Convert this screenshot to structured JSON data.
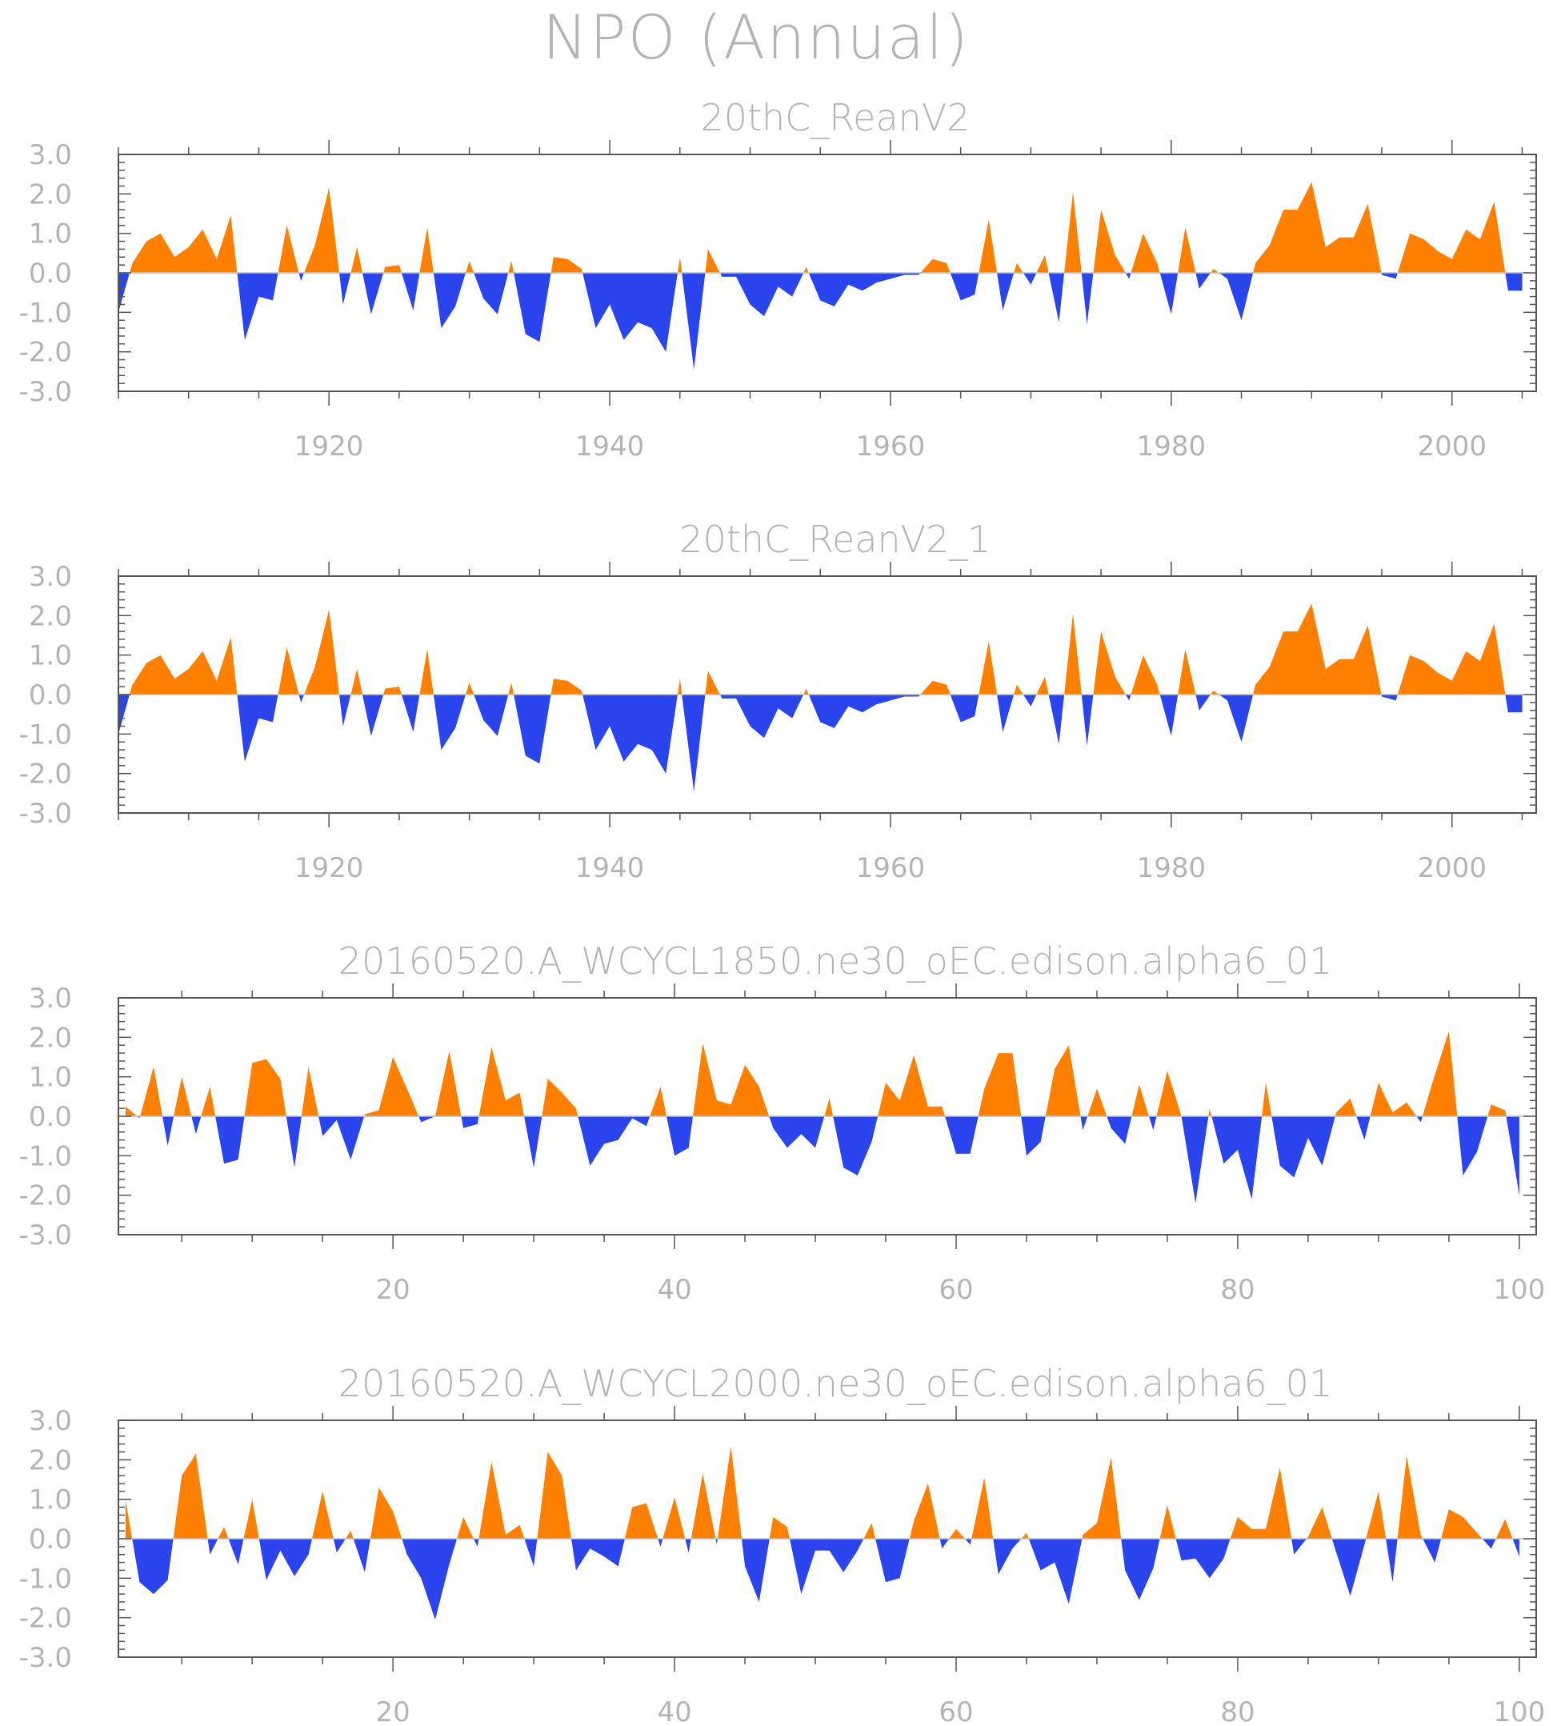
{
  "figure": {
    "title": "NPO (Annual)"
  },
  "colors": {
    "positive": "#ff8000",
    "negative": "#2a45ee",
    "axis": "#555555",
    "text": "#b4b4b4"
  },
  "chart_data": [
    {
      "type": "area",
      "title": "20thC_ReanV2",
      "xlabel": "",
      "ylabel": "",
      "xlim": [
        1905,
        2006
      ],
      "ylim": [
        -3,
        3
      ],
      "xticks": [
        1920,
        1940,
        1960,
        1980,
        2000
      ],
      "yticks": [
        "3.0",
        "2.0",
        "1.0",
        "0.0",
        "-1.0",
        "-2.0",
        "-3.0"
      ],
      "x_start": 1905,
      "values": [
        -1.0,
        0.25,
        0.8,
        1.0,
        0.4,
        0.65,
        1.1,
        0.35,
        1.45,
        -1.7,
        -0.6,
        -0.7,
        1.2,
        -0.2,
        0.7,
        2.15,
        -0.8,
        0.65,
        -1.05,
        0.15,
        0.2,
        -0.95,
        1.15,
        -1.4,
        -0.85,
        0.3,
        -0.65,
        -1.05,
        0.3,
        -1.55,
        -1.75,
        0.4,
        0.35,
        0.1,
        -1.4,
        -0.8,
        -1.7,
        -1.25,
        -1.4,
        -2.0,
        0.4,
        -2.45,
        0.6,
        -0.1,
        -0.1,
        -0.8,
        -1.1,
        -0.35,
        -0.6,
        0.15,
        -0.7,
        -0.85,
        -0.3,
        -0.45,
        -0.25,
        -0.15,
        -0.05,
        -0.05,
        0.35,
        0.25,
        -0.7,
        -0.55,
        1.35,
        -0.95,
        0.25,
        -0.3,
        0.45,
        -1.25,
        2.05,
        -1.3,
        1.6,
        0.45,
        -0.15,
        1.0,
        0.25,
        -1.05,
        1.15,
        -0.4,
        0.1,
        -0.15,
        -1.2,
        0.25,
        0.7,
        1.6,
        1.6,
        2.3,
        0.65,
        0.9,
        0.9,
        1.75,
        -0.05,
        -0.15,
        1.0,
        0.85,
        0.55,
        0.35,
        1.1,
        0.85,
        1.8,
        -0.45,
        -0.45
      ]
    },
    {
      "type": "area",
      "title": "20thC_ReanV2_1",
      "xlabel": "",
      "ylabel": "",
      "xlim": [
        1905,
        2006
      ],
      "ylim": [
        -3,
        3
      ],
      "xticks": [
        1920,
        1940,
        1960,
        1980,
        2000
      ],
      "yticks": [
        "3.0",
        "2.0",
        "1.0",
        "0.0",
        "-1.0",
        "-2.0",
        "-3.0"
      ],
      "x_start": 1905,
      "values": [
        -1.0,
        0.25,
        0.8,
        1.0,
        0.4,
        0.65,
        1.1,
        0.35,
        1.45,
        -1.7,
        -0.6,
        -0.7,
        1.2,
        -0.2,
        0.7,
        2.15,
        -0.8,
        0.65,
        -1.05,
        0.15,
        0.2,
        -0.95,
        1.15,
        -1.4,
        -0.85,
        0.3,
        -0.65,
        -1.05,
        0.3,
        -1.55,
        -1.75,
        0.4,
        0.35,
        0.1,
        -1.4,
        -0.8,
        -1.7,
        -1.25,
        -1.4,
        -2.0,
        0.4,
        -2.45,
        0.6,
        -0.1,
        -0.1,
        -0.8,
        -1.1,
        -0.35,
        -0.6,
        0.15,
        -0.7,
        -0.85,
        -0.3,
        -0.45,
        -0.25,
        -0.15,
        -0.05,
        -0.05,
        0.35,
        0.25,
        -0.7,
        -0.55,
        1.35,
        -0.95,
        0.25,
        -0.3,
        0.45,
        -1.25,
        2.05,
        -1.3,
        1.6,
        0.45,
        -0.15,
        1.0,
        0.25,
        -1.05,
        1.15,
        -0.4,
        0.1,
        -0.15,
        -1.2,
        0.25,
        0.7,
        1.6,
        1.6,
        2.3,
        0.65,
        0.9,
        0.9,
        1.75,
        -0.05,
        -0.15,
        1.0,
        0.85,
        0.55,
        0.35,
        1.1,
        0.85,
        1.8,
        -0.45,
        -0.45
      ]
    },
    {
      "type": "area",
      "title": "20160520.A_WCYCL1850.ne30_oEC.edison.alpha6_01",
      "xlabel": "",
      "ylabel": "",
      "xlim": [
        0.5,
        101.2
      ],
      "ylim": [
        -3,
        3
      ],
      "xticks": [
        20,
        40,
        60,
        80,
        100
      ],
      "yticks": [
        "3.0",
        "2.0",
        "1.0",
        "0.0",
        "-1.0",
        "-2.0",
        "-3.0"
      ],
      "x_start": 1,
      "values": [
        0.25,
        -0.05,
        1.25,
        -0.75,
        1.0,
        -0.45,
        0.75,
        -1.2,
        -1.1,
        1.35,
        1.45,
        0.95,
        -1.3,
        1.25,
        -0.5,
        -0.1,
        -1.1,
        0.05,
        0.15,
        1.5,
        0.7,
        -0.15,
        0.0,
        1.65,
        -0.3,
        -0.2,
        1.75,
        0.4,
        0.6,
        -1.3,
        0.95,
        0.6,
        0.2,
        -1.25,
        -0.7,
        -0.6,
        -0.05,
        -0.25,
        0.75,
        -1.0,
        -0.8,
        1.85,
        0.4,
        0.3,
        1.3,
        0.75,
        -0.3,
        -0.8,
        -0.45,
        -0.8,
        0.45,
        -1.3,
        -1.5,
        -0.65,
        0.85,
        0.4,
        1.55,
        0.25,
        0.25,
        -0.95,
        -0.95,
        0.7,
        1.6,
        1.6,
        -1.0,
        -0.65,
        1.2,
        1.8,
        -0.35,
        0.7,
        -0.3,
        -0.7,
        0.8,
        -0.35,
        1.15,
        0.0,
        -2.2,
        0.2,
        -1.2,
        -0.85,
        -2.1,
        0.85,
        -1.25,
        -1.55,
        -0.55,
        -1.25,
        0.1,
        0.45,
        -0.6,
        0.85,
        0.1,
        0.35,
        -0.15,
        1.05,
        2.15,
        -1.5,
        -0.9,
        0.3,
        0.15,
        -2.0
      ]
    },
    {
      "type": "area",
      "title": "20160520.A_WCYCL2000.ne30_oEC.edison.alpha6_01",
      "xlabel": "",
      "ylabel": "",
      "xlim": [
        0.5,
        101.2
      ],
      "ylim": [
        -3,
        3
      ],
      "xticks": [
        20,
        40,
        60,
        80,
        100
      ],
      "yticks": [
        "3.0",
        "2.0",
        "1.0",
        "0.0",
        "-1.0",
        "-2.0",
        "-3.0"
      ],
      "x_start": 1,
      "values": [
        1.0,
        -1.1,
        -1.4,
        -1.05,
        1.6,
        2.15,
        -0.4,
        0.3,
        -0.65,
        1.0,
        -1.05,
        -0.3,
        -0.95,
        -0.4,
        1.2,
        -0.35,
        0.2,
        -0.85,
        1.3,
        0.7,
        -0.4,
        -1.0,
        -2.05,
        -0.65,
        0.55,
        -0.2,
        1.95,
        0.1,
        0.35,
        -0.7,
        2.2,
        1.6,
        -0.8,
        -0.25,
        -0.45,
        -0.7,
        0.8,
        0.9,
        -0.2,
        1.05,
        -0.35,
        1.65,
        -0.15,
        2.35,
        -0.7,
        -1.6,
        0.55,
        0.3,
        -1.4,
        -0.3,
        -0.3,
        -0.85,
        -0.3,
        0.4,
        -1.1,
        -1.0,
        0.45,
        1.4,
        -0.25,
        0.25,
        -0.15,
        1.55,
        -0.9,
        -0.25,
        0.15,
        -0.8,
        -0.6,
        -1.65,
        0.1,
        0.4,
        2.05,
        -0.8,
        -1.55,
        -0.75,
        0.85,
        -0.55,
        -0.5,
        -1.0,
        -0.5,
        0.55,
        0.25,
        0.25,
        1.8,
        -0.4,
        0.05,
        0.8,
        -0.35,
        -1.45,
        -0.15,
        1.2,
        -1.1,
        2.1,
        0.1,
        -0.6,
        0.75,
        0.55,
        0.15,
        -0.25,
        0.5,
        -0.45
      ]
    }
  ]
}
